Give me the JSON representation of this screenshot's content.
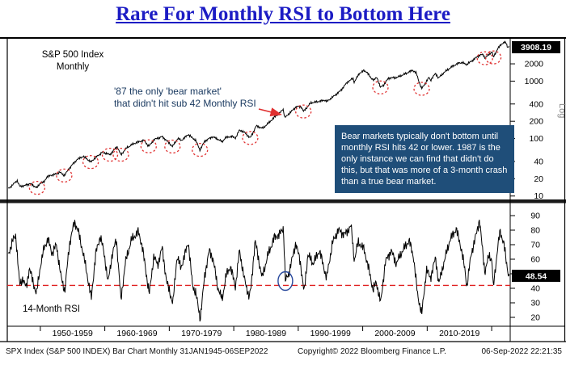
{
  "title": "Rare For Monthly RSI to Bottom Here",
  "price_panel": {
    "label_line1": "S&P 500 Index",
    "label_line2": "Monthly",
    "scale_label": "Log",
    "note_line1": "'87 the only 'bear market'",
    "note_line2": "that didn't hit sub 42 Monthly RSI",
    "callout": "Bear markets typically don't bottom until monthly RSI hits 42 or lower. 1987 is the only instance we can find that didn't do this, but that was more of a 3-month crash than a true bear market.",
    "last_value_label": "3908.19"
  },
  "rsi_panel": {
    "label": "14-Month RSI",
    "last_value_label": "48.54"
  },
  "footer": {
    "left": "SPX Index (S&P 500 INDEX) Bar Chart Monthly 31JAN1945-06SEP2022",
    "center": "Copyright© 2022 Bloomberg Finance L.P.",
    "right": "06-Sep-2022 22:21:35"
  },
  "colors": {
    "title_blue": "#1c1cc4",
    "callout_bg": "#1f4e79",
    "note_text": "#17375e",
    "annotation_red": "#e03030",
    "threshold_red": "#e02020",
    "circle_blue": "#27489c",
    "line_black": "#000000"
  },
  "xaxis": {
    "decade_ticks": [
      1950,
      1960,
      1970,
      1980,
      1990,
      2000,
      2010,
      2020
    ],
    "decade_labels": [
      "1950-1959",
      "1960-1969",
      "1970-1979",
      "1980-1989",
      "1990-1999",
      "2000-2009",
      "2010-2019"
    ]
  },
  "chart_data": [
    {
      "type": "line",
      "name": "S&P 500 Index Monthly",
      "yscale": "log",
      "x_range": [
        1945,
        2022.75
      ],
      "ylim": [
        9,
        4800
      ],
      "yticks": [
        2000,
        1000,
        400,
        200,
        100,
        40,
        20,
        10
      ],
      "last_value": 3908.19,
      "arrow_target_year": 1987.92,
      "bear_bottom_circle_years": [
        1949.5,
        1953.7,
        1957.8,
        1960.8,
        1962.5,
        1966.8,
        1970.5,
        1974.75,
        1982.55,
        1990.8,
        2002.75,
        2009.15,
        2018.95,
        2020.25
      ],
      "points": [
        [
          1945.0,
          13.4
        ],
        [
          1945.6,
          15.2
        ],
        [
          1946.4,
          18.6
        ],
        [
          1946.8,
          14.7
        ],
        [
          1947.5,
          15.1
        ],
        [
          1948.4,
          16.5
        ],
        [
          1948.9,
          15.2
        ],
        [
          1949.5,
          13.9
        ],
        [
          1950.0,
          16.9
        ],
        [
          1950.55,
          17.3
        ],
        [
          1951.0,
          21.4
        ],
        [
          1951.8,
          23.3
        ],
        [
          1952.6,
          24.5
        ],
        [
          1953.0,
          26.2
        ],
        [
          1953.7,
          22.7
        ],
        [
          1954.4,
          29.2
        ],
        [
          1955.0,
          35.6
        ],
        [
          1955.7,
          43.2
        ],
        [
          1956.6,
          48.8
        ],
        [
          1957.2,
          44.7
        ],
        [
          1957.8,
          39.0
        ],
        [
          1958.6,
          47.2
        ],
        [
          1959.6,
          57.5
        ],
        [
          1960.2,
          55.3
        ],
        [
          1960.8,
          52.3
        ],
        [
          1961.9,
          72.6
        ],
        [
          1962.5,
          52.3
        ],
        [
          1963.4,
          69.1
        ],
        [
          1964.5,
          81.7
        ],
        [
          1965.4,
          89.0
        ],
        [
          1966.1,
          93.3
        ],
        [
          1966.8,
          73.2
        ],
        [
          1967.7,
          96.7
        ],
        [
          1968.9,
          108.4
        ],
        [
          1969.6,
          92.1
        ],
        [
          1970.5,
          72.7
        ],
        [
          1971.3,
          100.3
        ],
        [
          1971.9,
          93.2
        ],
        [
          1972.95,
          118.1
        ],
        [
          1973.5,
          104.3
        ],
        [
          1974.1,
          93.2
        ],
        [
          1974.75,
          63.5
        ],
        [
          1975.5,
          90.2
        ],
        [
          1976.7,
          107.8
        ],
        [
          1977.8,
          94.3
        ],
        [
          1978.2,
          87.0
        ],
        [
          1978.7,
          103.9
        ],
        [
          1979.7,
          109.3
        ],
        [
          1980.25,
          102.1
        ],
        [
          1980.9,
          140.5
        ],
        [
          1981.6,
          129.6
        ],
        [
          1982.55,
          102.4
        ],
        [
          1983.5,
          166.1
        ],
        [
          1984.5,
          150.6
        ],
        [
          1985.5,
          191.8
        ],
        [
          1986.6,
          252.9
        ],
        [
          1987.1,
          274.1
        ],
        [
          1987.65,
          329.8
        ],
        [
          1987.92,
          230.3
        ],
        [
          1988.5,
          266.7
        ],
        [
          1989.7,
          359.8
        ],
        [
          1990.45,
          361.2
        ],
        [
          1990.8,
          295.5
        ],
        [
          1991.95,
          417.1
        ],
        [
          1993.0,
          438.8
        ],
        [
          1994.1,
          466.4
        ],
        [
          1994.5,
          444.3
        ],
        [
          1995.5,
          544.8
        ],
        [
          1996.5,
          670.6
        ],
        [
          1997.6,
          954.3
        ],
        [
          1998.5,
          1120.7
        ],
        [
          1998.67,
          957.3
        ],
        [
          1999.5,
          1372.7
        ],
        [
          2000.2,
          1527.5
        ],
        [
          2000.65,
          1436.5
        ],
        [
          2001.2,
          1160.3
        ],
        [
          2001.73,
          1040.9
        ],
        [
          2002.2,
          1170.3
        ],
        [
          2002.75,
          776.8
        ],
        [
          2003.2,
          848.2
        ],
        [
          2004.0,
          1131.1
        ],
        [
          2005.3,
          1156.9
        ],
        [
          2006.3,
          1294.9
        ],
        [
          2007.75,
          1549.4
        ],
        [
          2008.3,
          1385.6
        ],
        [
          2008.85,
          896.2
        ],
        [
          2009.15,
          735.1
        ],
        [
          2010.3,
          1169.4
        ],
        [
          2010.5,
          1030.7
        ],
        [
          2011.3,
          1363.6
        ],
        [
          2011.75,
          1131.4
        ],
        [
          2012.7,
          1440.7
        ],
        [
          2013.9,
          1805.8
        ],
        [
          2014.9,
          2067.6
        ],
        [
          2015.4,
          2107.4
        ],
        [
          2016.1,
          1940.2
        ],
        [
          2017.0,
          2278.9
        ],
        [
          2018.05,
          2823.8
        ],
        [
          2018.7,
          2901.5
        ],
        [
          2018.95,
          2506.9
        ],
        [
          2019.9,
          3140.9
        ],
        [
          2020.1,
          3225.5
        ],
        [
          2020.25,
          2584.6
        ],
        [
          2020.9,
          3621.6
        ],
        [
          2021.5,
          4395.3
        ],
        [
          2021.95,
          4766.2
        ],
        [
          2022.3,
          4530.4
        ],
        [
          2022.45,
          3785.4
        ],
        [
          2022.55,
          4130.3
        ],
        [
          2022.67,
          3908.19
        ]
      ]
    },
    {
      "type": "line",
      "name": "14-Month RSI",
      "yscale": "linear",
      "x_range": [
        1945,
        2022.75
      ],
      "ylim": [
        15,
        95
      ],
      "yticks": [
        90,
        80,
        70,
        60,
        50,
        40,
        30,
        20
      ],
      "threshold": 42,
      "last_value": 48.54,
      "highlight_circle_year": 1988.0,
      "points": [
        [
          1945.0,
          62
        ],
        [
          1945.6,
          72
        ],
        [
          1946.2,
          76
        ],
        [
          1946.8,
          42
        ],
        [
          1947.3,
          47
        ],
        [
          1947.8,
          40
        ],
        [
          1948.3,
          54
        ],
        [
          1948.9,
          44
        ],
        [
          1949.4,
          36
        ],
        [
          1950.0,
          55
        ],
        [
          1950.6,
          68
        ],
        [
          1951.2,
          74
        ],
        [
          1951.8,
          64
        ],
        [
          1952.5,
          70
        ],
        [
          1953.2,
          48
        ],
        [
          1953.8,
          38
        ],
        [
          1954.5,
          70
        ],
        [
          1955.3,
          86
        ],
        [
          1955.9,
          79
        ],
        [
          1956.5,
          67
        ],
        [
          1957.2,
          51
        ],
        [
          1957.9,
          33
        ],
        [
          1958.6,
          64
        ],
        [
          1959.3,
          76
        ],
        [
          1959.9,
          64
        ],
        [
          1960.5,
          44
        ],
        [
          1961.1,
          62
        ],
        [
          1961.8,
          74
        ],
        [
          1962.5,
          32
        ],
        [
          1963.2,
          58
        ],
        [
          1964.1,
          73
        ],
        [
          1965.2,
          79
        ],
        [
          1965.8,
          69
        ],
        [
          1966.3,
          54
        ],
        [
          1966.9,
          36
        ],
        [
          1967.6,
          62
        ],
        [
          1968.2,
          56
        ],
        [
          1968.9,
          68
        ],
        [
          1969.6,
          44
        ],
        [
          1970.0,
          39
        ],
        [
          1970.55,
          29
        ],
        [
          1971.2,
          62
        ],
        [
          1971.8,
          54
        ],
        [
          1972.4,
          63
        ],
        [
          1972.95,
          72
        ],
        [
          1973.6,
          42
        ],
        [
          1974.1,
          37
        ],
        [
          1974.8,
          19
        ],
        [
          1975.5,
          49
        ],
        [
          1976.2,
          66
        ],
        [
          1976.8,
          60
        ],
        [
          1977.5,
          41
        ],
        [
          1978.2,
          32
        ],
        [
          1978.8,
          49
        ],
        [
          1979.5,
          55
        ],
        [
          1980.25,
          41
        ],
        [
          1980.9,
          66
        ],
        [
          1981.6,
          47
        ],
        [
          1982.4,
          34
        ],
        [
          1982.7,
          41
        ],
        [
          1983.3,
          73
        ],
        [
          1984.4,
          47
        ],
        [
          1985.3,
          63
        ],
        [
          1986.3,
          75
        ],
        [
          1987.1,
          77
        ],
        [
          1987.7,
          82
        ],
        [
          1988.0,
          45
        ],
        [
          1988.6,
          51
        ],
        [
          1989.6,
          71
        ],
        [
          1990.3,
          59
        ],
        [
          1990.9,
          37
        ],
        [
          1991.5,
          63
        ],
        [
          1992.3,
          57
        ],
        [
          1993.3,
          66
        ],
        [
          1994.4,
          47
        ],
        [
          1995.3,
          71
        ],
        [
          1996.2,
          80
        ],
        [
          1997.2,
          77
        ],
        [
          1998.2,
          83
        ],
        [
          1998.7,
          59
        ],
        [
          1999.3,
          72
        ],
        [
          2000.2,
          67
        ],
        [
          2000.9,
          54
        ],
        [
          2001.6,
          39
        ],
        [
          2002.1,
          44
        ],
        [
          2002.8,
          30
        ],
        [
          2003.5,
          58
        ],
        [
          2004.4,
          66
        ],
        [
          2005.2,
          57
        ],
        [
          2006.2,
          66
        ],
        [
          2007.2,
          73
        ],
        [
          2007.9,
          61
        ],
        [
          2008.5,
          36
        ],
        [
          2009.15,
          22
        ],
        [
          2009.9,
          53
        ],
        [
          2010.5,
          47
        ],
        [
          2011.3,
          61
        ],
        [
          2011.8,
          43
        ],
        [
          2012.5,
          56
        ],
        [
          2013.5,
          73
        ],
        [
          2014.5,
          81
        ],
        [
          2015.3,
          67
        ],
        [
          2015.9,
          51
        ],
        [
          2016.15,
          41
        ],
        [
          2016.8,
          63
        ],
        [
          2017.6,
          77
        ],
        [
          2018.1,
          87
        ],
        [
          2018.95,
          51
        ],
        [
          2019.6,
          63
        ],
        [
          2020.05,
          59
        ],
        [
          2020.25,
          40
        ],
        [
          2020.9,
          67
        ],
        [
          2021.3,
          79
        ],
        [
          2021.9,
          71
        ],
        [
          2022.3,
          57
        ],
        [
          2022.67,
          48.54
        ]
      ]
    }
  ]
}
